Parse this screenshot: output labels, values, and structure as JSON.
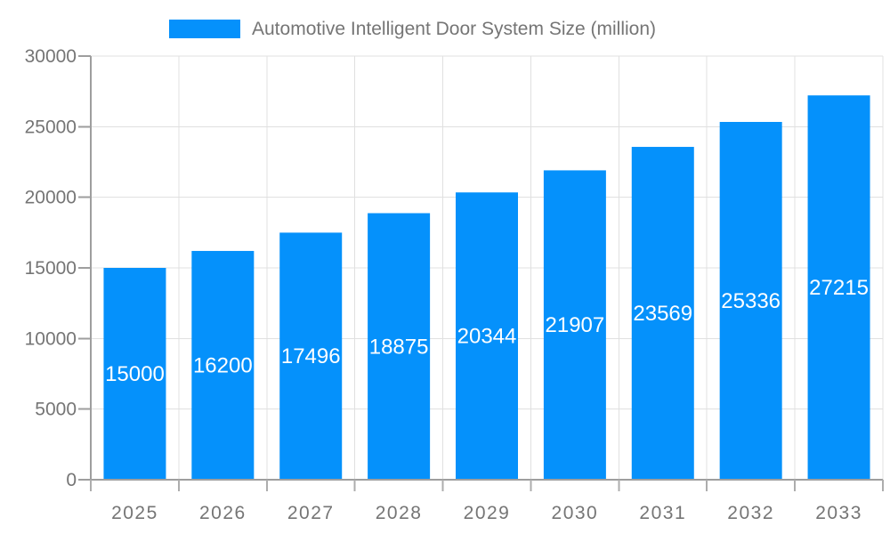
{
  "chart_data": {
    "type": "bar",
    "title": "Automotive Intelligent Door System Size (million)",
    "legend_position": "top",
    "categories": [
      "2025",
      "2026",
      "2027",
      "2028",
      "2029",
      "2030",
      "2031",
      "2032",
      "2033"
    ],
    "series": [
      {
        "name": "Automotive Intelligent Door System Size (million)",
        "values": [
          15000,
          16200,
          17496,
          18875,
          20344,
          21907,
          23569,
          25336,
          27215
        ]
      }
    ],
    "xlabel": "",
    "ylabel": "",
    "ylim": [
      0,
      30000
    ],
    "yticks": [
      0,
      5000,
      10000,
      15000,
      20000,
      25000,
      30000
    ],
    "grid": "horizontal gridlines at y ticks, vertical gridlines at category boundaries",
    "value_labels": "inside center of bars, white",
    "colors": {
      "bar": "#0591FB",
      "grid_line": "#E0E0E0",
      "axis_line": "#9E9E9E",
      "tick": "#ADADAD",
      "axis_label": "#757575",
      "legend_text": "#757575",
      "value_label": "#FFFFFF",
      "background": "#FFFFFF"
    }
  }
}
